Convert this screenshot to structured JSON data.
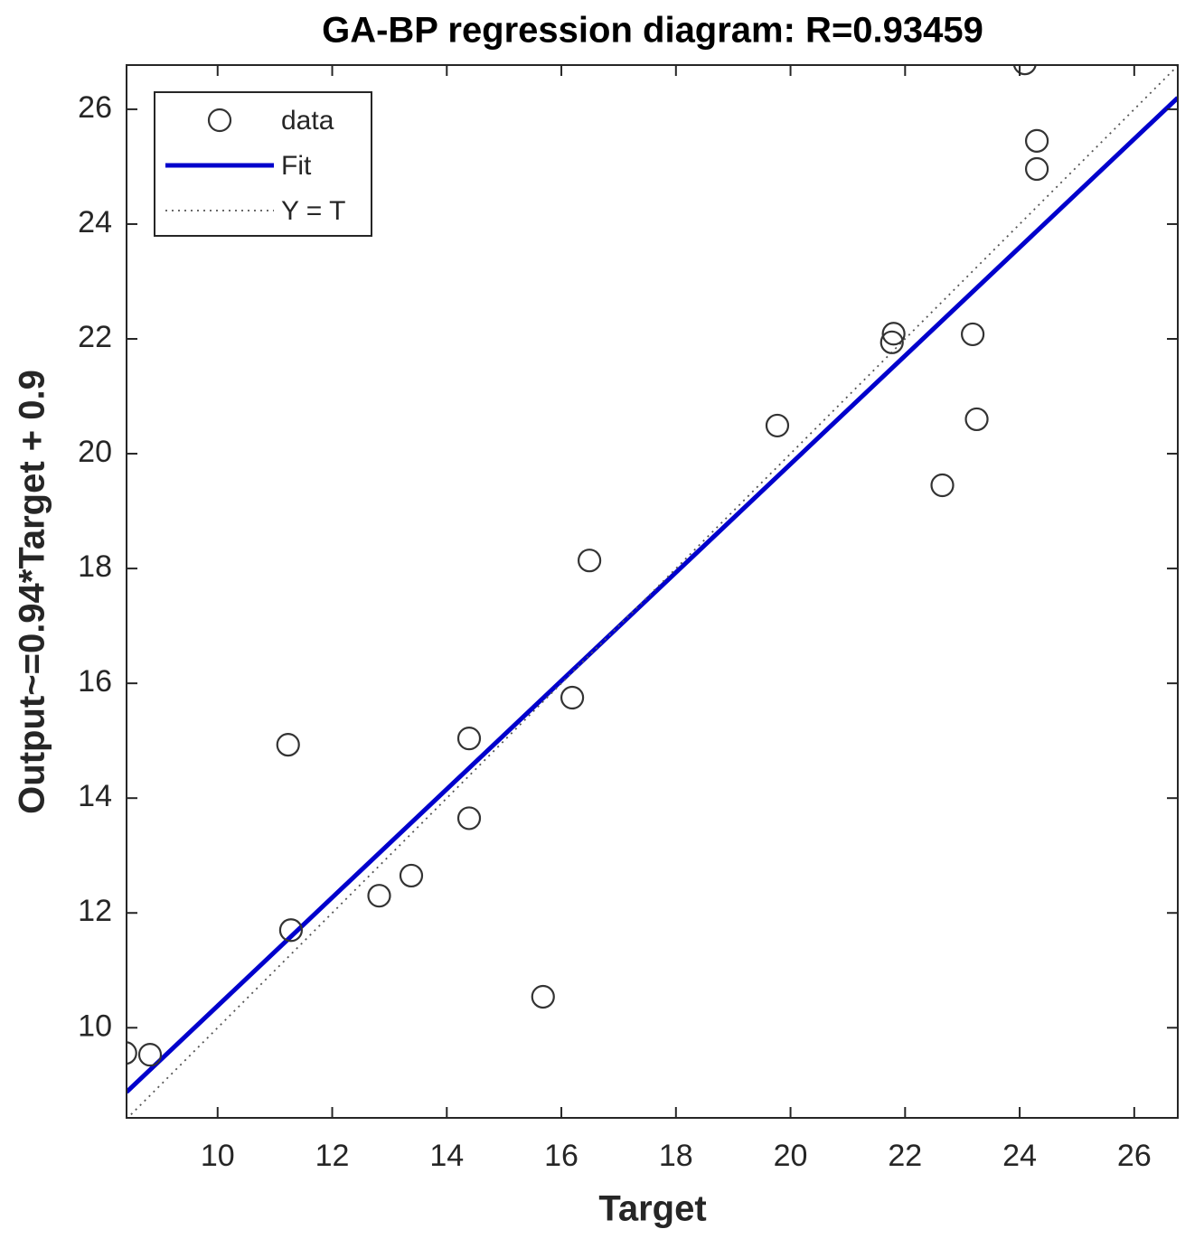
{
  "chart_data": {
    "type": "scatter",
    "title": "GA-BP regression diagram: R=0.93459",
    "x_label": "Target",
    "y_label": "Output~=0.94*Target + 0.9",
    "xlim": [
      8.41,
      26.76
    ],
    "ylim": [
      8.43,
      26.77
    ],
    "xticks": [
      10,
      12,
      14,
      16,
      18,
      20,
      22,
      24,
      26
    ],
    "yticks": [
      10,
      12,
      14,
      16,
      18,
      20,
      22,
      24,
      26
    ],
    "legend": "upper left",
    "series": [
      {
        "name": "data",
        "style": "circle",
        "color": "#333333",
        "x": [
          8.39,
          8.82,
          11.23,
          11.28,
          12.82,
          13.38,
          14.39,
          14.39,
          15.68,
          16.19,
          16.49,
          19.77,
          21.77,
          21.8,
          22.65,
          23.18,
          23.25,
          24.09,
          24.3,
          24.3
        ],
        "values": [
          9.56,
          9.53,
          14.93,
          11.7,
          12.3,
          12.65,
          15.04,
          13.65,
          10.54,
          15.75,
          18.14,
          20.49,
          21.94,
          22.09,
          19.45,
          22.08,
          20.6,
          26.8,
          25.45,
          24.96
        ]
      },
      {
        "name": "Fit",
        "style": "solid",
        "color": "#0000cc",
        "x": [
          8.41,
          26.76
        ],
        "values": [
          8.88,
          26.2
        ]
      },
      {
        "name": "Y = T",
        "style": "dotted",
        "color": "#555555",
        "x": [
          8.41,
          26.76
        ],
        "values": [
          8.41,
          26.76
        ]
      }
    ]
  }
}
